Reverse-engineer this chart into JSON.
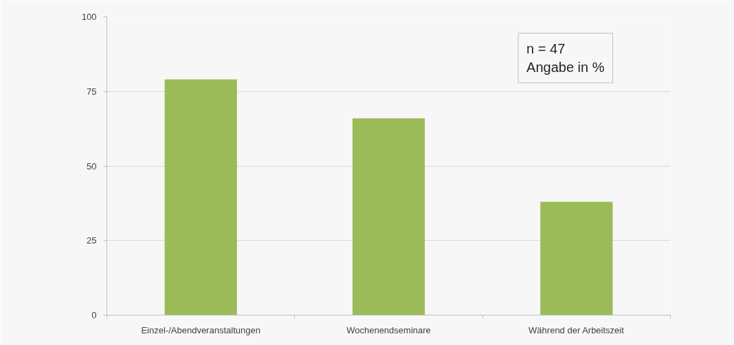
{
  "chart_data": {
    "type": "bar",
    "categories": [
      "Einzel-/Abendveranstaltungen",
      "Wochenendseminare",
      "Während der Arbeitszeit"
    ],
    "values": [
      79,
      66,
      38
    ],
    "color": "#9bbb59",
    "ylim": [
      0,
      100
    ],
    "yticks": [
      0,
      25,
      50,
      75,
      100
    ],
    "grid": "y",
    "annotations": [
      "n = 47\nAngabe in %"
    ]
  }
}
